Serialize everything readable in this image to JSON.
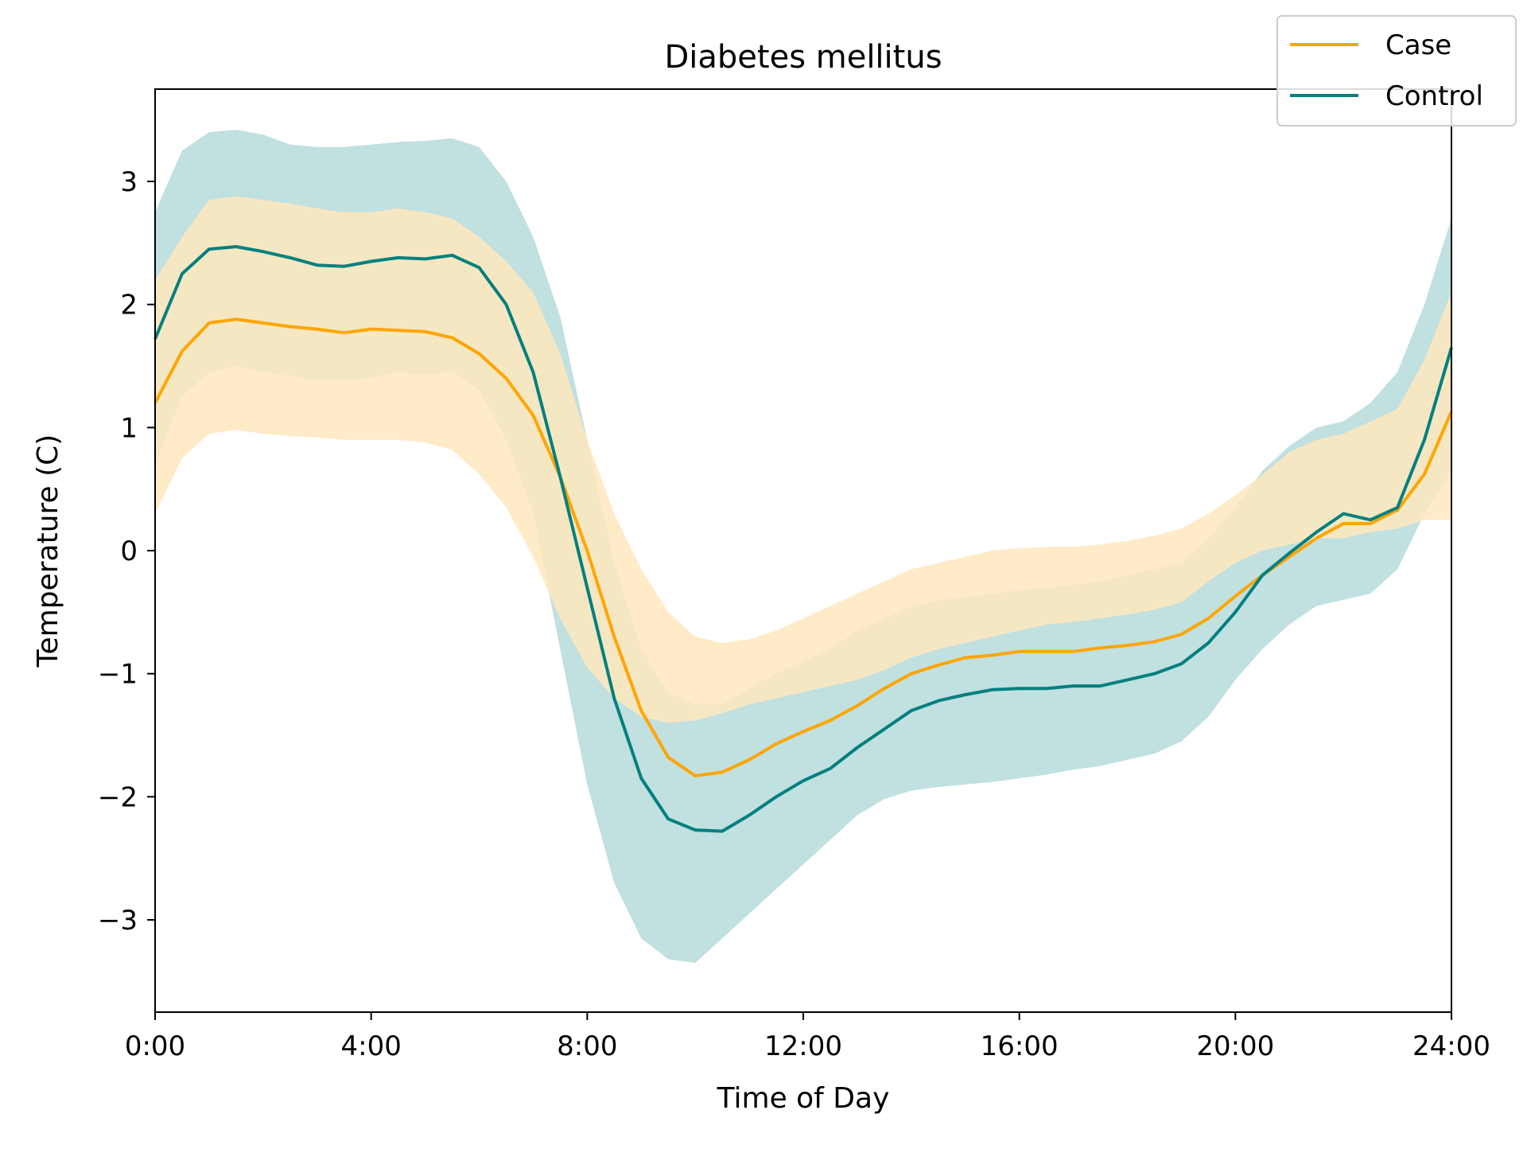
{
  "chart_data": {
    "type": "line",
    "title": "Diabetes mellitus",
    "xlabel": "Time of Day",
    "ylabel": "Temperature (C)",
    "xlim": [
      0,
      24
    ],
    "ylim": [
      -3.75,
      3.75
    ],
    "xticks": [
      {
        "value": 0,
        "label": "0:00"
      },
      {
        "value": 4,
        "label": "4:00"
      },
      {
        "value": 8,
        "label": "8:00"
      },
      {
        "value": 12,
        "label": "12:00"
      },
      {
        "value": 16,
        "label": "16:00"
      },
      {
        "value": 20,
        "label": "20:00"
      },
      {
        "value": 24,
        "label": "24:00"
      }
    ],
    "yticks": [
      {
        "value": 3,
        "label": "3"
      },
      {
        "value": 2,
        "label": "2"
      },
      {
        "value": 1,
        "label": "1"
      },
      {
        "value": 0,
        "label": "0"
      },
      {
        "value": -1,
        "label": "−1"
      },
      {
        "value": -2,
        "label": "−2"
      },
      {
        "value": -3,
        "label": "−3"
      }
    ],
    "grid": false,
    "legend_position": "top-right",
    "x": [
      0,
      0.5,
      1,
      1.5,
      2,
      2.5,
      3,
      3.5,
      4,
      4.5,
      5,
      5.5,
      6,
      6.5,
      7,
      7.5,
      8,
      8.5,
      9,
      9.5,
      10,
      10.5,
      11,
      11.5,
      12,
      12.5,
      13,
      13.5,
      14,
      14.5,
      15,
      15.5,
      16,
      16.5,
      17,
      17.5,
      18,
      18.5,
      19,
      19.5,
      20,
      20.5,
      21,
      21.5,
      22,
      22.5,
      23,
      23.5,
      24
    ],
    "series": [
      {
        "name": "Case",
        "color": "#ffa500",
        "band_color": "#ffe7bd",
        "values": [
          1.2,
          1.62,
          1.85,
          1.88,
          1.85,
          1.82,
          1.8,
          1.77,
          1.8,
          1.79,
          1.78,
          1.73,
          1.6,
          1.4,
          1.1,
          0.6,
          0.0,
          -0.7,
          -1.3,
          -1.68,
          -1.83,
          -1.8,
          -1.7,
          -1.57,
          -1.47,
          -1.38,
          -1.26,
          -1.12,
          -1.0,
          -0.93,
          -0.87,
          -0.85,
          -0.82,
          -0.82,
          -0.82,
          -0.79,
          -0.77,
          -0.74,
          -0.68,
          -0.55,
          -0.37,
          -0.2,
          -0.05,
          0.1,
          0.22,
          0.22,
          0.33,
          0.62,
          1.13
        ],
        "lower": [
          0.3,
          0.75,
          0.95,
          0.98,
          0.95,
          0.93,
          0.92,
          0.9,
          0.9,
          0.9,
          0.88,
          0.82,
          0.62,
          0.35,
          -0.05,
          -0.55,
          -0.95,
          -1.2,
          -1.35,
          -1.4,
          -1.38,
          -1.32,
          -1.25,
          -1.2,
          -1.15,
          -1.1,
          -1.05,
          -0.97,
          -0.87,
          -0.8,
          -0.75,
          -0.7,
          -0.65,
          -0.6,
          -0.58,
          -0.55,
          -0.52,
          -0.48,
          -0.42,
          -0.25,
          -0.1,
          0.0,
          0.05,
          0.1,
          0.1,
          0.15,
          0.18,
          0.25,
          0.25
        ],
        "upper": [
          2.2,
          2.55,
          2.85,
          2.88,
          2.85,
          2.82,
          2.78,
          2.75,
          2.75,
          2.78,
          2.75,
          2.7,
          2.55,
          2.35,
          2.1,
          1.6,
          0.9,
          0.3,
          -0.15,
          -0.5,
          -0.7,
          -0.75,
          -0.72,
          -0.65,
          -0.55,
          -0.45,
          -0.35,
          -0.25,
          -0.15,
          -0.1,
          -0.05,
          0.0,
          0.02,
          0.03,
          0.03,
          0.05,
          0.08,
          0.12,
          0.18,
          0.3,
          0.45,
          0.62,
          0.8,
          0.9,
          0.95,
          1.05,
          1.15,
          1.55,
          2.1
        ]
      },
      {
        "name": "Control",
        "color": "#00807f",
        "band_color": "#c1e0e0",
        "values": [
          1.72,
          2.25,
          2.45,
          2.47,
          2.43,
          2.38,
          2.32,
          2.31,
          2.35,
          2.38,
          2.37,
          2.4,
          2.3,
          2.0,
          1.45,
          0.6,
          -0.3,
          -1.2,
          -1.85,
          -2.18,
          -2.27,
          -2.28,
          -2.15,
          -2.0,
          -1.87,
          -1.77,
          -1.6,
          -1.45,
          -1.3,
          -1.22,
          -1.17,
          -1.13,
          -1.12,
          -1.12,
          -1.1,
          -1.1,
          -1.05,
          -1.0,
          -0.92,
          -0.75,
          -0.5,
          -0.2,
          -0.02,
          0.15,
          0.3,
          0.25,
          0.35,
          0.9,
          1.65
        ],
        "lower": [
          0.7,
          1.25,
          1.45,
          1.5,
          1.45,
          1.42,
          1.38,
          1.38,
          1.4,
          1.45,
          1.43,
          1.45,
          1.3,
          0.9,
          0.3,
          -0.8,
          -1.9,
          -2.7,
          -3.15,
          -3.32,
          -3.35,
          -3.15,
          -2.95,
          -2.75,
          -2.55,
          -2.35,
          -2.15,
          -2.02,
          -1.95,
          -1.92,
          -1.9,
          -1.88,
          -1.85,
          -1.82,
          -1.78,
          -1.75,
          -1.7,
          -1.65,
          -1.55,
          -1.35,
          -1.05,
          -0.8,
          -0.6,
          -0.45,
          -0.4,
          -0.35,
          -0.15,
          0.3,
          0.65
        ],
        "upper": [
          2.75,
          3.25,
          3.4,
          3.42,
          3.38,
          3.3,
          3.28,
          3.28,
          3.3,
          3.32,
          3.33,
          3.35,
          3.28,
          3.0,
          2.55,
          1.9,
          0.9,
          -0.1,
          -0.8,
          -1.15,
          -1.25,
          -1.25,
          -1.12,
          -1.0,
          -0.9,
          -0.8,
          -0.65,
          -0.55,
          -0.45,
          -0.4,
          -0.38,
          -0.35,
          -0.32,
          -0.3,
          -0.28,
          -0.25,
          -0.2,
          -0.15,
          -0.1,
          0.1,
          0.35,
          0.65,
          0.85,
          1.0,
          1.05,
          1.2,
          1.45,
          2.0,
          2.7
        ]
      }
    ]
  }
}
